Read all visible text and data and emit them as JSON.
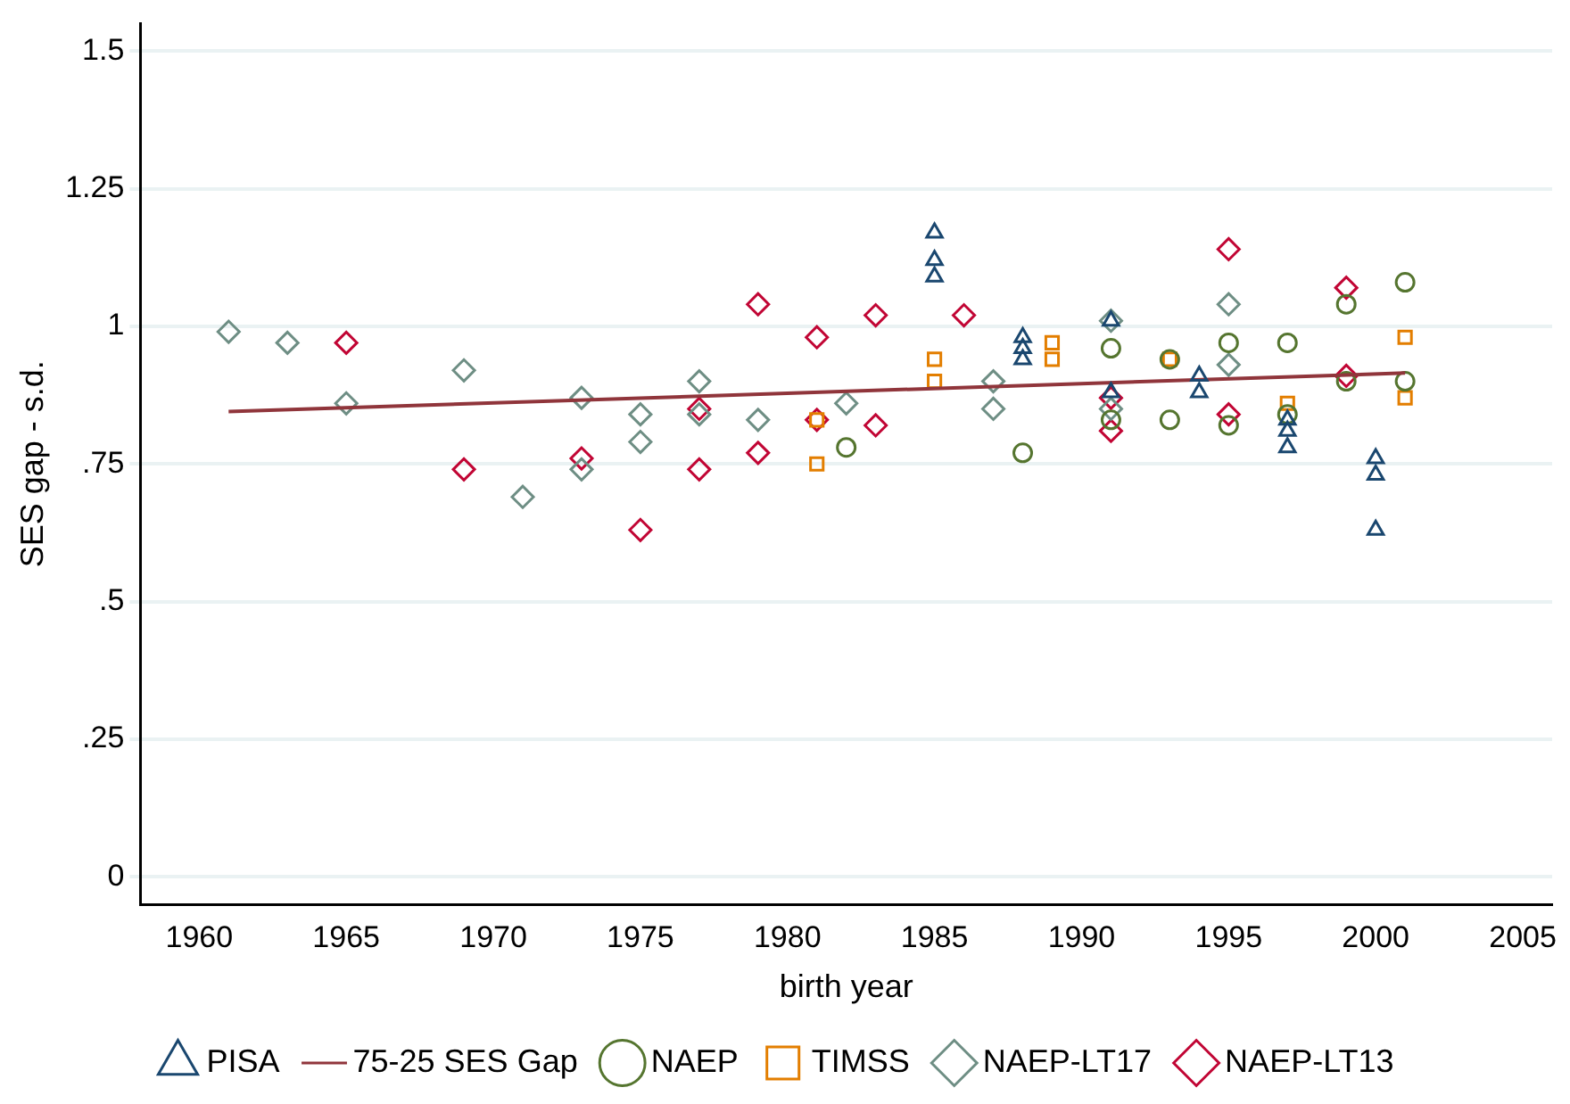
{
  "chart_data": {
    "type": "scatter",
    "xlabel": "birth year",
    "ylabel": "SES gap - s.d.",
    "xlim": [
      1958,
      2006
    ],
    "xticks": [
      1960,
      1965,
      1970,
      1975,
      1980,
      1985,
      1990,
      1995,
      2000,
      2005
    ],
    "ylim": [
      -0.05,
      1.55
    ],
    "yticks": [
      0,
      {
        "value": 0.25,
        "label": ".25"
      },
      {
        "value": 0.5,
        "label": ".5"
      },
      {
        "value": 0.75,
        "label": ".75"
      },
      1,
      1.25,
      1.5
    ],
    "grid": "y",
    "legend": "bottom",
    "series": [
      {
        "name": "PISA",
        "color": "#1a476f",
        "marker": "triangle",
        "x": [
          1985,
          1985,
          1985,
          1988,
          1988,
          1988,
          1991,
          1991,
          1994,
          1994,
          1997,
          1997,
          1997,
          2000,
          2000,
          2000
        ],
        "values": [
          1.17,
          1.12,
          1.09,
          0.98,
          0.96,
          0.94,
          1.01,
          0.88,
          0.91,
          0.88,
          0.83,
          0.81,
          0.78,
          0.76,
          0.73,
          0.63
        ]
      },
      {
        "name": "75-25 SES Gap",
        "type": "line",
        "color": "#90353b",
        "marker": "none",
        "x": [
          1961,
          2001
        ],
        "values": [
          0.845,
          0.915
        ]
      },
      {
        "name": "NAEP",
        "color": "#55752f",
        "marker": "circle",
        "x": [
          1982,
          1988,
          1991,
          1991,
          1993,
          1993,
          1995,
          1995,
          1997,
          1997,
          1999,
          1999,
          2001,
          2001
        ],
        "values": [
          0.78,
          0.77,
          0.96,
          0.83,
          0.83,
          0.94,
          0.97,
          0.82,
          0.97,
          0.84,
          1.04,
          0.9,
          1.08,
          0.9
        ]
      },
      {
        "name": "TIMSS",
        "color": "#e37e00",
        "marker": "square",
        "x": [
          1981,
          1981,
          1985,
          1985,
          1989,
          1989,
          1993,
          1997,
          2001,
          2001
        ],
        "values": [
          0.83,
          0.75,
          0.94,
          0.9,
          0.97,
          0.94,
          0.94,
          0.86,
          0.98,
          0.87
        ]
      },
      {
        "name": "NAEP-LT17",
        "color": "#6e8e84",
        "marker": "diamond",
        "x": [
          1961,
          1963,
          1965,
          1969,
          1971,
          1973,
          1973,
          1975,
          1975,
          1977,
          1977,
          1979,
          1982,
          1987,
          1987,
          1991,
          1991,
          1995,
          1995
        ],
        "values": [
          0.99,
          0.97,
          0.86,
          0.92,
          0.69,
          0.87,
          0.74,
          0.84,
          0.79,
          0.9,
          0.84,
          0.83,
          0.86,
          0.9,
          0.85,
          1.01,
          0.85,
          1.04,
          0.93
        ]
      },
      {
        "name": "NAEP-LT13",
        "color": "#c10534",
        "marker": "diamond",
        "x": [
          1965,
          1969,
          1973,
          1975,
          1977,
          1977,
          1979,
          1979,
          1981,
          1981,
          1983,
          1983,
          1986,
          1991,
          1991,
          1995,
          1995,
          1999,
          1999
        ],
        "values": [
          0.97,
          0.74,
          0.76,
          0.63,
          0.74,
          0.85,
          1.04,
          0.77,
          0.98,
          0.83,
          1.02,
          0.82,
          1.02,
          0.87,
          0.81,
          1.14,
          0.84,
          1.07,
          0.91
        ]
      }
    ]
  }
}
